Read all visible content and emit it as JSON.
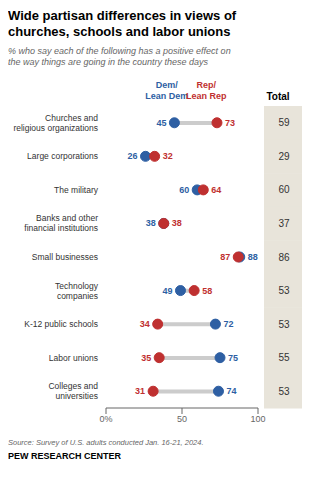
{
  "chart_data": {
    "type": "dumbbell",
    "title": "Wide partisan differences in views of\nchurches, schools and labor unions",
    "subtitle": "% who say each of the following has a positive effect on\nthe way things are going in the country these days",
    "categories": [
      "Churches and\nreligious organizations",
      "Large corporations",
      "The military",
      "Banks and other\nfinancial institutions",
      "Small businesses",
      "Technology\ncompanies",
      "K-12 public schools",
      "Labor unions",
      "Colleges and\nuniversities"
    ],
    "series": [
      {
        "name": "Dem/\nLean Dem",
        "color": "#2E5FA3",
        "values": [
          45,
          26,
          60,
          38,
          88,
          49,
          72,
          75,
          74
        ]
      },
      {
        "name": "Rep/\nLean Rep",
        "color": "#BF3030",
        "values": [
          73,
          32,
          64,
          38,
          87,
          58,
          34,
          35,
          31
        ]
      }
    ],
    "totals": {
      "name": "Total",
      "values": [
        59,
        29,
        60,
        37,
        86,
        53,
        53,
        55,
        53
      ]
    },
    "xlim": [
      0,
      100
    ],
    "xticks": [
      {
        "value": 0,
        "label": "0%"
      },
      50,
      100
    ],
    "data_labels": true,
    "grid": false,
    "annotations": [
      "Source: Survey of U.S. adults conducted Jan. 16-21, 2024.",
      "PEW RESEARCH CENTER"
    ]
  }
}
